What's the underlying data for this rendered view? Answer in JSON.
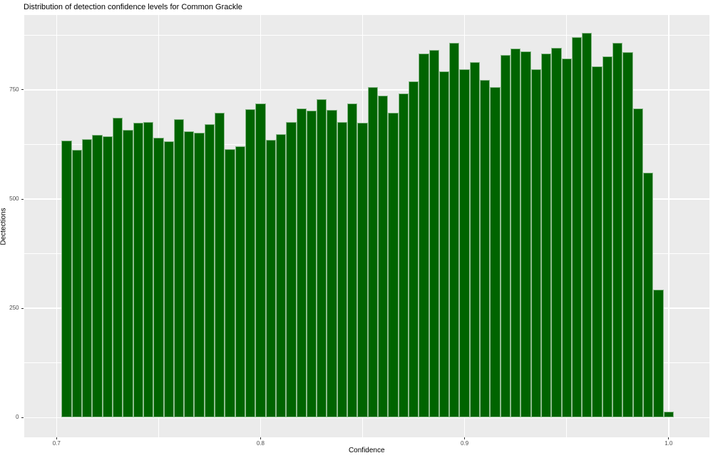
{
  "title": "Distribution of detection confidence levels for Common Grackle",
  "chart_data": {
    "type": "bar",
    "subtype": "histogram",
    "title": "Distribution of detection confidence levels for Common Grackle",
    "xlabel": "Confidence",
    "ylabel": "Dectections",
    "legend": "none",
    "grid": true,
    "bin_width": 0.005,
    "bin_centers": [
      0.705,
      0.71,
      0.715,
      0.72,
      0.725,
      0.73,
      0.735,
      0.74,
      0.745,
      0.75,
      0.755,
      0.76,
      0.765,
      0.77,
      0.775,
      0.78,
      0.785,
      0.79,
      0.795,
      0.8,
      0.805,
      0.81,
      0.815,
      0.82,
      0.825,
      0.83,
      0.835,
      0.84,
      0.845,
      0.85,
      0.855,
      0.86,
      0.865,
      0.87,
      0.875,
      0.88,
      0.885,
      0.89,
      0.895,
      0.9,
      0.905,
      0.91,
      0.915,
      0.92,
      0.925,
      0.93,
      0.935,
      0.94,
      0.945,
      0.95,
      0.955,
      0.96,
      0.965,
      0.97,
      0.975,
      0.98,
      0.985,
      0.99,
      0.995,
      1.0
    ],
    "counts": [
      634,
      613,
      637,
      647,
      643,
      686,
      658,
      675,
      676,
      640,
      632,
      682,
      655,
      652,
      671,
      698,
      615,
      620,
      705,
      718,
      636,
      648,
      677,
      707,
      703,
      728,
      704,
      677,
      718,
      675,
      756,
      737,
      698,
      742,
      770,
      833,
      841,
      792,
      858,
      797,
      814,
      773,
      757,
      829,
      845,
      838,
      797,
      833,
      846,
      821,
      871,
      880,
      803,
      827,
      858,
      836,
      708,
      560,
      293,
      14
    ],
    "x_ticks": [
      0.7,
      0.8,
      0.9,
      1.0
    ],
    "x_tick_labels": [
      "0.7",
      "0.8",
      "0.9",
      "1.0"
    ],
    "y_ticks": [
      0,
      250,
      500,
      750
    ],
    "y_tick_labels": [
      "0",
      "250",
      "500",
      "750"
    ],
    "x_minor_ticks": [
      0.75,
      0.85,
      0.95
    ],
    "y_minor_ticks": [
      125,
      375,
      625,
      875
    ],
    "xlim": [
      0.684,
      1.02
    ],
    "ylim": [
      -45,
      921
    ],
    "colors": {
      "bar_fill": "#006400",
      "bar_stroke": "#8FBC8F",
      "panel_bg": "#EBEBEB",
      "grid": "#FFFFFF",
      "tick_label": "#4D4D4D",
      "text": "#000000",
      "background": "#FFFFFF"
    }
  }
}
